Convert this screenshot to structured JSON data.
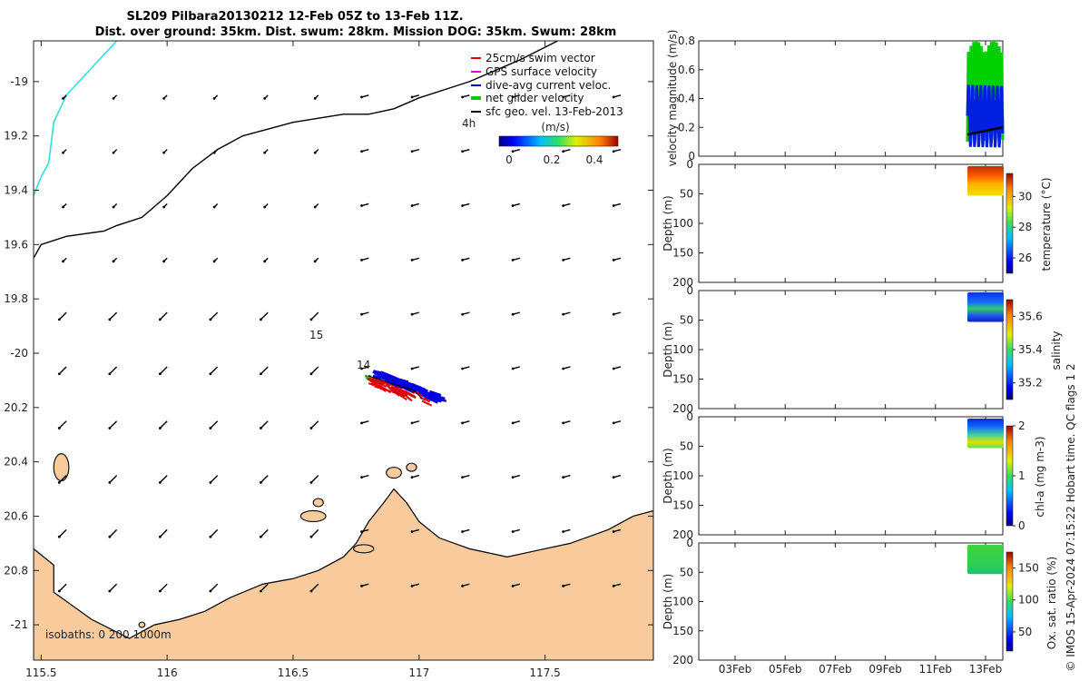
{
  "title": {
    "line1": "SL209 Pilbara20130212 12-Feb 05Z to 13-Feb 11Z.",
    "line2": "Dist. over ground: 35km. Dist. swum: 28km. Mission DOG: 35km. Swum: 28km"
  },
  "map": {
    "xlim": [
      115.47,
      117.93
    ],
    "ylim": [
      -21.13,
      -18.85
    ],
    "xticks": [
      115.5,
      116,
      116.5,
      117,
      117.5
    ],
    "xtick_labels": [
      "115.5",
      "116",
      "116.5",
      "117",
      "117.5"
    ],
    "yticks": [
      -19,
      -19.2,
      -19.4,
      -19.6,
      -19.8,
      -20,
      -20.2,
      -20.4,
      -20.6,
      -20.8,
      -21
    ],
    "ytick_labels": [
      "-19",
      "19.2",
      "19.4",
      "19.6",
      "19.8",
      "-20",
      "20.2",
      "20.4",
      "20.6",
      "20.8",
      "-21"
    ],
    "isobaths_note": "isobaths: 0   200  1000m",
    "annotations": [
      {
        "text": "4h",
        "lon": 117.2,
        "lat": -19.12
      },
      {
        "text": "15",
        "lon": 116.5,
        "lat": -19.92
      },
      {
        "text": "14",
        "lon": 116.74,
        "lat": -20.01
      }
    ],
    "legend": [
      {
        "label": "25cm/s swim vector",
        "color": "#e00000"
      },
      {
        "label": "GPS surface velocity",
        "color": "#e000e0"
      },
      {
        "label": "dive-avg current veloc.",
        "color": "#0000e0"
      },
      {
        "label": "net glider velocity",
        "color": "#00d000"
      },
      {
        "label": "sfc geo. vel. 13-Feb-2013",
        "color": "#000000"
      }
    ],
    "colorbar": {
      "label": "(m/s)",
      "ticks": [
        0,
        0.2,
        0.4
      ],
      "tick_labels": [
        "0",
        "0.2",
        "0.4"
      ],
      "range": [
        0,
        0.5
      ]
    },
    "coast_color": "#f9cb9c"
  },
  "panels": {
    "velocity": {
      "ylabel": "velocity magnitude (m/s)",
      "ylim": [
        0,
        0.8
      ],
      "yticks": [
        0,
        0.2,
        0.4,
        0.6,
        0.8
      ],
      "ytick_labels": [
        "0",
        "0.2",
        "0.4",
        "0.6",
        "0.8"
      ]
    },
    "depth_ylabel": "Depth (m)",
    "depth_ticks": [
      "0",
      "50",
      "100",
      "150",
      "200"
    ],
    "temperature": {
      "label": "temperature (°C)",
      "ticks": [
        "26",
        "28",
        "30"
      ],
      "range": [
        25,
        31.5
      ]
    },
    "salinity": {
      "label": "salinity",
      "ticks": [
        "35.2",
        "35.4",
        "35.6"
      ],
      "range": [
        35.1,
        35.7
      ]
    },
    "chla": {
      "label": "chl-a (mg m-3)",
      "ticks": [
        "0",
        "1",
        "2"
      ],
      "range": [
        0,
        2
      ]
    },
    "oxygen": {
      "label": "Ox. sat. ratio (%)",
      "ticks": [
        "50",
        "100",
        "150"
      ],
      "range": [
        20,
        175
      ]
    },
    "time_ticks": [
      "03Feb",
      "05Feb",
      "07Feb",
      "09Feb",
      "11Feb",
      "13Feb"
    ]
  },
  "footer": "© IMOS 15-Apr-2024 07:15:22 Hobart time. QC flags 1  2",
  "chart_data": {
    "type": "scatter",
    "title": "SL209 Pilbara20130212 12-Feb 05Z to 13-Feb 11Z.",
    "xlabel": "",
    "ylabel": "",
    "track_cluster": {
      "lon_range": [
        116.78,
        117.03
      ],
      "lat_range": [
        -20.07,
        -20.18
      ]
    },
    "velocity_magnitude_range": [
      0.05,
      0.8
    ]
  }
}
